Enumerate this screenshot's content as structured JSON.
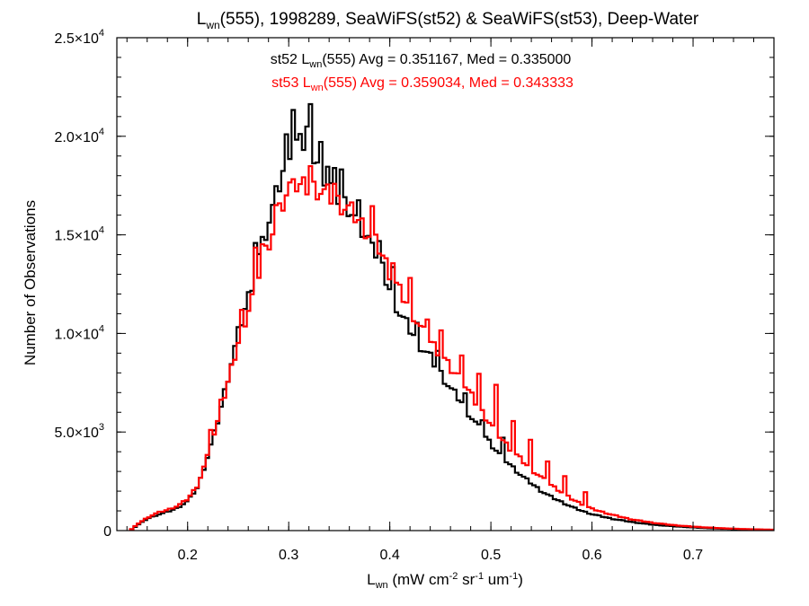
{
  "chart_data": {
    "type": "histogram",
    "title": {
      "prefix": "L",
      "sub": "wn",
      "suffix": "(555), 1998289, SeaWiFS(st52) & SeaWiFS(st53), Deep-Water"
    },
    "xlabel": {
      "prefix": "L",
      "sub": "wn",
      "p1": " (mW cm",
      "e1": "-2",
      "p2": " sr",
      "e2": "-1",
      "p3": " um",
      "e3": "-1",
      "p4": ")"
    },
    "ylabel": "Number of Observations",
    "xlim": [
      0.13,
      0.78
    ],
    "ylim": [
      0,
      25000
    ],
    "x_ticks": [
      {
        "value": 0.2,
        "label": "0.2"
      },
      {
        "value": 0.3,
        "label": "0.3"
      },
      {
        "value": 0.4,
        "label": "0.4"
      },
      {
        "value": 0.5,
        "label": "0.5"
      },
      {
        "value": 0.6,
        "label": "0.6"
      },
      {
        "value": 0.7,
        "label": "0.7"
      }
    ],
    "x_minor_step": 0.02,
    "y_ticks": [
      {
        "value": 0,
        "label": "0",
        "exp": ""
      },
      {
        "value": 5000,
        "label": "5.0×10",
        "exp": "3"
      },
      {
        "value": 10000,
        "label": "1.0×10",
        "exp": "4"
      },
      {
        "value": 15000,
        "label": "1.5×10",
        "exp": "4"
      },
      {
        "value": 20000,
        "label": "2.0×10",
        "exp": "4"
      },
      {
        "value": 25000,
        "label": "2.5×10",
        "exp": "4"
      }
    ],
    "y_minor_step": 1000,
    "grid": false,
    "bin_width": 0.0034,
    "series": [
      {
        "name": "st52",
        "color": "#000000",
        "annotation": {
          "prefix": "st52 L",
          "sub": "wn",
          "suffix": "(555) Avg = 0.351167, Med = 0.335000"
        },
        "points": [
          [
            0.143,
            0
          ],
          [
            0.151,
            300
          ],
          [
            0.16,
            600
          ],
          [
            0.17,
            800
          ],
          [
            0.18,
            950
          ],
          [
            0.19,
            1150
          ],
          [
            0.2,
            1500
          ],
          [
            0.21,
            2200
          ],
          [
            0.22,
            3800
          ],
          [
            0.23,
            5600
          ],
          [
            0.24,
            7800
          ],
          [
            0.25,
            10000
          ],
          [
            0.26,
            11800
          ],
          [
            0.27,
            13800
          ],
          [
            0.28,
            15500
          ],
          [
            0.29,
            17200
          ],
          [
            0.3,
            19200
          ],
          [
            0.31,
            19500
          ],
          [
            0.32,
            19500
          ],
          [
            0.33,
            18500
          ],
          [
            0.34,
            17600
          ],
          [
            0.35,
            16800
          ],
          [
            0.36,
            16400
          ],
          [
            0.37,
            15400
          ],
          [
            0.38,
            14600
          ],
          [
            0.39,
            13600
          ],
          [
            0.4,
            12200
          ],
          [
            0.41,
            11000
          ],
          [
            0.42,
            10200
          ],
          [
            0.43,
            9400
          ],
          [
            0.44,
            8800
          ],
          [
            0.45,
            8000
          ],
          [
            0.46,
            7200
          ],
          [
            0.47,
            6600
          ],
          [
            0.48,
            5800
          ],
          [
            0.49,
            5100
          ],
          [
            0.5,
            4400
          ],
          [
            0.51,
            3800
          ],
          [
            0.52,
            3300
          ],
          [
            0.53,
            2800
          ],
          [
            0.54,
            2400
          ],
          [
            0.55,
            2000
          ],
          [
            0.56,
            1700
          ],
          [
            0.57,
            1450
          ],
          [
            0.58,
            1200
          ],
          [
            0.59,
            1000
          ],
          [
            0.6,
            830
          ],
          [
            0.62,
            600
          ],
          [
            0.64,
            430
          ],
          [
            0.66,
            300
          ],
          [
            0.68,
            220
          ],
          [
            0.7,
            160
          ],
          [
            0.72,
            110
          ],
          [
            0.74,
            75
          ],
          [
            0.76,
            50
          ],
          [
            0.78,
            35
          ]
        ],
        "spikes": [
          [
            0.266,
            1500
          ],
          [
            0.287,
            1200
          ],
          [
            0.297,
            800
          ],
          [
            0.304,
            2000
          ],
          [
            0.31,
            1200
          ],
          [
            0.318,
            800
          ],
          [
            0.323,
            1700
          ],
          [
            0.332,
            1000
          ],
          [
            0.338,
            900
          ],
          [
            0.345,
            700
          ],
          [
            0.352,
            1600
          ],
          [
            0.369,
            800
          ],
          [
            0.382,
            700
          ],
          [
            0.391,
            900
          ],
          [
            0.402,
            1300
          ],
          [
            0.427,
            700
          ],
          [
            0.449,
            900
          ],
          [
            0.473,
            600
          ],
          [
            0.492,
            700
          ],
          [
            0.512,
            900
          ]
        ]
      },
      {
        "name": "st53",
        "color": "#ff0000",
        "annotation": {
          "prefix": "st53 L",
          "sub": "wn",
          "suffix": "(555) Avg = 0.359034, Med = 0.343333"
        },
        "points": [
          [
            0.143,
            0
          ],
          [
            0.151,
            350
          ],
          [
            0.16,
            650
          ],
          [
            0.17,
            900
          ],
          [
            0.18,
            1050
          ],
          [
            0.19,
            1250
          ],
          [
            0.2,
            1600
          ],
          [
            0.21,
            2300
          ],
          [
            0.22,
            3800
          ],
          [
            0.23,
            5500
          ],
          [
            0.24,
            7500
          ],
          [
            0.25,
            9500
          ],
          [
            0.26,
            11200
          ],
          [
            0.27,
            13000
          ],
          [
            0.28,
            14600
          ],
          [
            0.29,
            16000
          ],
          [
            0.3,
            17300
          ],
          [
            0.31,
            17400
          ],
          [
            0.32,
            17400
          ],
          [
            0.33,
            17300
          ],
          [
            0.34,
            17000
          ],
          [
            0.35,
            16600
          ],
          [
            0.36,
            16300
          ],
          [
            0.37,
            15700
          ],
          [
            0.38,
            15000
          ],
          [
            0.39,
            14300
          ],
          [
            0.4,
            13100
          ],
          [
            0.41,
            12100
          ],
          [
            0.42,
            11300
          ],
          [
            0.43,
            10300
          ],
          [
            0.44,
            9600
          ],
          [
            0.45,
            9000
          ],
          [
            0.46,
            8200
          ],
          [
            0.47,
            7700
          ],
          [
            0.48,
            6900
          ],
          [
            0.49,
            6100
          ],
          [
            0.5,
            5400
          ],
          [
            0.51,
            4700
          ],
          [
            0.52,
            4100
          ],
          [
            0.53,
            3600
          ],
          [
            0.54,
            3100
          ],
          [
            0.55,
            2700
          ],
          [
            0.56,
            2300
          ],
          [
            0.57,
            1950
          ],
          [
            0.58,
            1600
          ],
          [
            0.59,
            1350
          ],
          [
            0.6,
            1100
          ],
          [
            0.62,
            800
          ],
          [
            0.64,
            560
          ],
          [
            0.66,
            400
          ],
          [
            0.68,
            280
          ],
          [
            0.7,
            200
          ],
          [
            0.72,
            140
          ],
          [
            0.74,
            95
          ],
          [
            0.76,
            65
          ],
          [
            0.78,
            45
          ]
        ],
        "spikes": [
          [
            0.224,
            900
          ],
          [
            0.233,
            700
          ],
          [
            0.252,
            900
          ],
          [
            0.266,
            1500
          ],
          [
            0.275,
            900
          ],
          [
            0.287,
            700
          ],
          [
            0.306,
            1000
          ],
          [
            0.322,
            1100
          ],
          [
            0.344,
            800
          ],
          [
            0.383,
            1500
          ],
          [
            0.403,
            900
          ],
          [
            0.42,
            1300
          ],
          [
            0.438,
            1100
          ],
          [
            0.452,
            1300
          ],
          [
            0.47,
            1500
          ],
          [
            0.487,
            1700
          ],
          [
            0.506,
            2200
          ],
          [
            0.523,
            1600
          ],
          [
            0.538,
            1400
          ],
          [
            0.556,
            1100
          ],
          [
            0.572,
            900
          ],
          [
            0.592,
            700
          ]
        ]
      }
    ]
  }
}
